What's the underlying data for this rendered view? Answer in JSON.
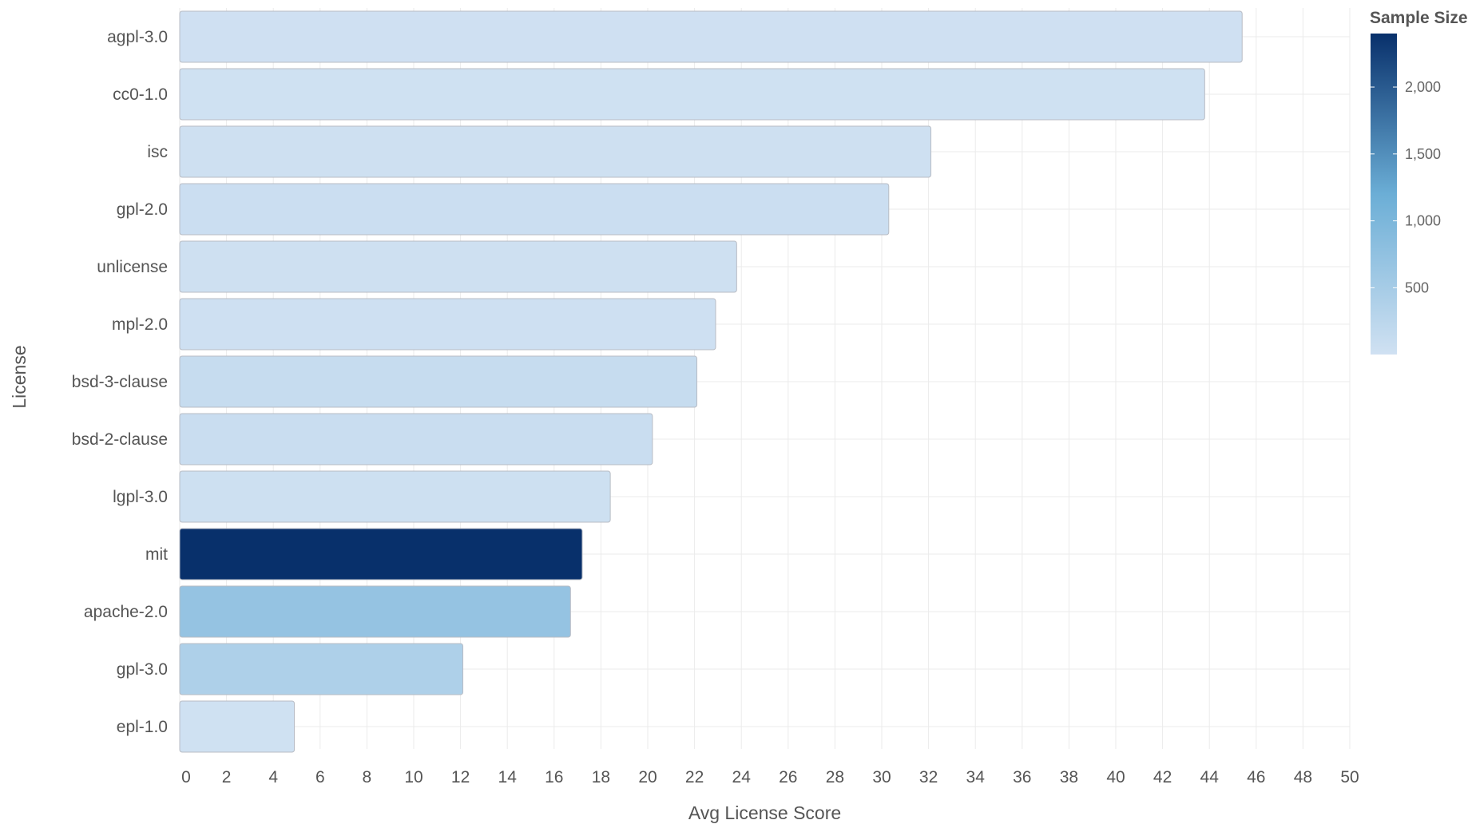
{
  "chart_data": {
    "type": "bar",
    "orientation": "horizontal",
    "xlabel": "Avg License Score",
    "ylabel": "License",
    "xlim": [
      0,
      50
    ],
    "x_ticks": [
      0,
      2,
      4,
      6,
      8,
      10,
      12,
      14,
      16,
      18,
      20,
      22,
      24,
      26,
      28,
      30,
      32,
      34,
      36,
      38,
      40,
      42,
      44,
      46,
      48,
      50
    ],
    "grid": true,
    "categories": [
      "agpl-3.0",
      "cc0-1.0",
      "isc",
      "gpl-2.0",
      "unlicense",
      "mpl-2.0",
      "bsd-3-clause",
      "bsd-2-clause",
      "lgpl-3.0",
      "mit",
      "apache-2.0",
      "gpl-3.0",
      "epl-1.0"
    ],
    "values": [
      45.4,
      43.8,
      32.1,
      30.3,
      23.8,
      22.9,
      22.1,
      20.2,
      18.4,
      17.2,
      16.7,
      12.1,
      4.9
    ],
    "sample_size": [
      15,
      10,
      30,
      60,
      25,
      20,
      120,
      90,
      35,
      2400,
      700,
      400,
      8
    ],
    "legend": {
      "title": "Sample Size",
      "placement": "right",
      "ticks": [
        500,
        1000,
        1500,
        2000
      ],
      "tick_labels": [
        "500",
        "1,000",
        "1,500",
        "2,000"
      ],
      "range": [
        1,
        2400
      ],
      "color_low": "#d0e1f2",
      "color_high": "#08306b"
    }
  }
}
